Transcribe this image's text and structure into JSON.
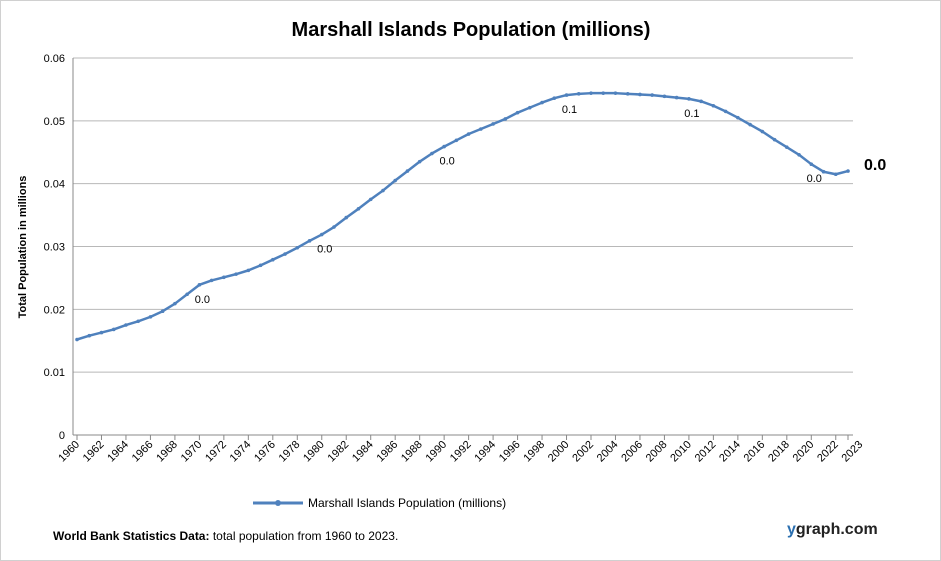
{
  "chart_data": {
    "type": "line",
    "title": "Marshall Islands Population (millions)",
    "ylabel": "Total Population  in millions",
    "xlabel": "",
    "ylim": [
      0,
      0.06
    ],
    "yticks": [
      "0",
      "0.01",
      "0.02",
      "0.03",
      "0.04",
      "0.05",
      "0.06"
    ],
    "x": [
      1960,
      1961,
      1962,
      1963,
      1964,
      1965,
      1966,
      1967,
      1968,
      1969,
      1970,
      1971,
      1972,
      1973,
      1974,
      1975,
      1976,
      1977,
      1978,
      1979,
      1980,
      1981,
      1982,
      1983,
      1984,
      1985,
      1986,
      1987,
      1988,
      1989,
      1990,
      1991,
      1992,
      1993,
      1994,
      1995,
      1996,
      1997,
      1998,
      1999,
      2000,
      2001,
      2002,
      2003,
      2004,
      2005,
      2006,
      2007,
      2008,
      2009,
      2010,
      2011,
      2012,
      2013,
      2014,
      2015,
      2016,
      2017,
      2018,
      2019,
      2020,
      2021,
      2022,
      2023
    ],
    "xticks": [
      "1960",
      "1962",
      "1964",
      "1966",
      "1968",
      "1970",
      "1972",
      "1974",
      "1976",
      "1978",
      "1980",
      "1982",
      "1984",
      "1986",
      "1988",
      "1990",
      "1992",
      "1994",
      "1996",
      "1998",
      "2000",
      "2002",
      "2004",
      "2006",
      "2008",
      "2010",
      "2012",
      "2014",
      "2016",
      "2018",
      "2020",
      "2022",
      "2023"
    ],
    "series": [
      {
        "name": "Marshall Islands Population (millions)",
        "color": "#4f81bd",
        "values": [
          0.0152,
          0.0158,
          0.0163,
          0.0168,
          0.0175,
          0.0181,
          0.0188,
          0.0197,
          0.0209,
          0.0224,
          0.0239,
          0.0246,
          0.0251,
          0.0256,
          0.0262,
          0.027,
          0.0279,
          0.0288,
          0.0298,
          0.0309,
          0.0319,
          0.0331,
          0.0346,
          0.036,
          0.0375,
          0.0389,
          0.0405,
          0.042,
          0.0435,
          0.0448,
          0.0459,
          0.0469,
          0.0479,
          0.0487,
          0.0495,
          0.0503,
          0.0513,
          0.0521,
          0.0529,
          0.0536,
          0.0541,
          0.0543,
          0.0544,
          0.0544,
          0.0544,
          0.0543,
          0.0542,
          0.0541,
          0.0539,
          0.0537,
          0.0535,
          0.0531,
          0.0524,
          0.0515,
          0.0505,
          0.0494,
          0.0483,
          0.047,
          0.0458,
          0.0446,
          0.0431,
          0.0419,
          0.0415,
          0.042
        ]
      }
    ],
    "data_labels": [
      {
        "year": 1970,
        "text": "0.0"
      },
      {
        "year": 1980,
        "text": "0.0"
      },
      {
        "year": 1990,
        "text": "0.0"
      },
      {
        "year": 2000,
        "text": "0.1"
      },
      {
        "year": 2010,
        "text": "0.1"
      },
      {
        "year": 2020,
        "text": "0.0"
      }
    ],
    "last_label": "0.0",
    "grid": true,
    "legend": "bottom"
  },
  "footer": {
    "bold": "World Bank Statistics Data:",
    "text": " total population from 1960 to 2023."
  },
  "brand": {
    "y": "y",
    "rest": "graph.com"
  }
}
